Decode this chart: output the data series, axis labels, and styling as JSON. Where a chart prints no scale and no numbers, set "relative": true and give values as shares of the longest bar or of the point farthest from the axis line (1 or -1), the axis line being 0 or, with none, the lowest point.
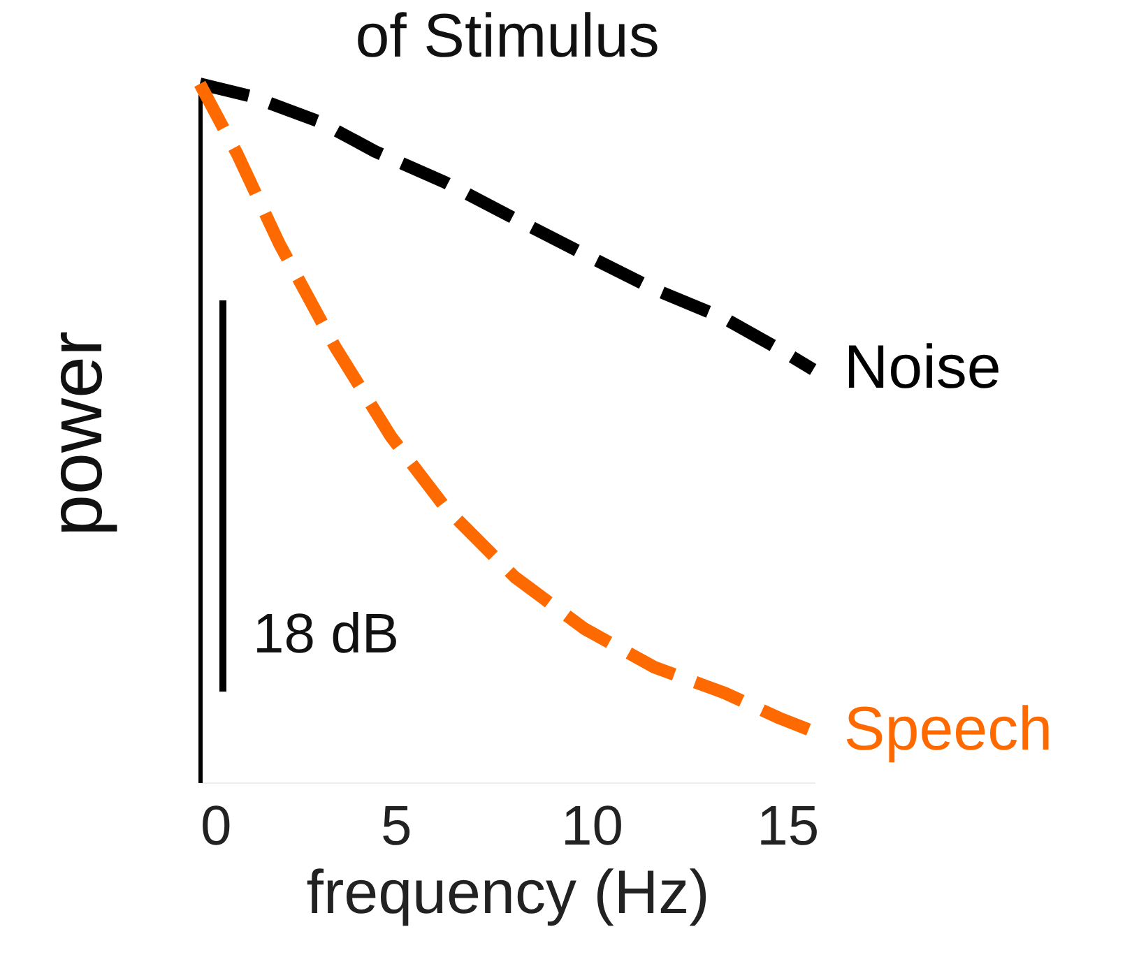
{
  "chart_data": {
    "type": "line",
    "title": "of Stimulus",
    "xlabel": "frequency (Hz)",
    "ylabel": "power",
    "relative": true,
    "xlim": [
      0,
      15.7
    ],
    "xticks": [
      0,
      5,
      10,
      15
    ],
    "line_style": "dashed",
    "legend": false,
    "marker": "none",
    "annotations": [
      "18 dB"
    ],
    "series": [
      {
        "name": "Noise",
        "color": "#000000",
        "x": [
          0,
          1.32,
          3.09,
          4.48,
          6.26,
          8.04,
          9.82,
          11.6,
          13.4,
          14.8,
          15.66
        ],
        "values": [
          1,
          0.982,
          0.945,
          0.903,
          0.859,
          0.807,
          0.756,
          0.706,
          0.664,
          0.62,
          0.591
        ]
      },
      {
        "name": "Speech",
        "color": "#ff6a00",
        "x": [
          0,
          0.96,
          2.03,
          3.45,
          4.88,
          6.26,
          8.04,
          9.82,
          11.6,
          13.4,
          14.8,
          15.66
        ],
        "values": [
          1,
          0.899,
          0.771,
          0.624,
          0.495,
          0.394,
          0.294,
          0.22,
          0.165,
          0.128,
          0.092,
          0.073
        ]
      }
    ]
  }
}
